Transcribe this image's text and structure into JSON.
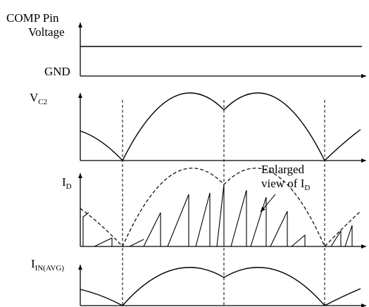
{
  "panels": {
    "comp": {
      "label_line1": "COMP Pin",
      "label_line2": "Voltage",
      "gnd": "GND"
    },
    "vc2": {
      "symbol": "V",
      "subscript": "C2"
    },
    "id": {
      "symbol": "I",
      "subscript": "D",
      "annotation_line1": "Enlarged",
      "annotation_line2_main": "view of I",
      "annotation_line2_sub": "D"
    },
    "iin": {
      "symbol": "I",
      "subscript": "IN(AVG)"
    }
  },
  "style": {
    "stroke": "#000000",
    "background": "#ffffff"
  }
}
